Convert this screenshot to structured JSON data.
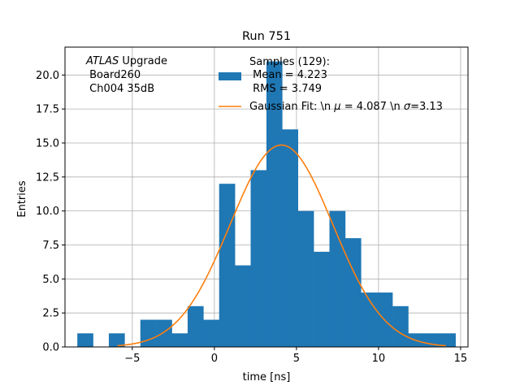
{
  "chart_data": {
    "type": "bar",
    "title": "Run 751",
    "xlabel": "time [ns]",
    "ylabel": "Entries",
    "xlim": [
      -9.1,
      15.45
    ],
    "ylim": [
      0,
      22.05
    ],
    "grid": true,
    "bin_width": 0.96,
    "histogram": {
      "bin_start": [
        -8.35,
        -7.39,
        -6.43,
        -5.47,
        -4.51,
        -3.55,
        -2.59,
        -1.63,
        -0.67,
        0.29,
        1.25,
        2.21,
        3.17,
        4.13,
        5.09,
        6.05,
        7.01,
        7.97,
        8.93,
        9.89,
        10.85,
        11.81,
        12.77,
        13.73
      ],
      "counts": [
        1,
        0,
        1,
        0,
        2,
        2,
        1,
        3,
        2,
        12,
        6,
        13,
        21,
        16,
        10,
        7,
        10,
        8,
        4,
        4,
        3,
        1,
        1,
        1
      ],
      "color": "#1f77b4"
    },
    "gaussian_fit": {
      "mu": 4.087,
      "sigma": 3.13,
      "amplitude": 14.85,
      "x_range": [
        -5.9,
        14.1
      ],
      "color": "#ff7f0e"
    },
    "x_ticks": [
      {
        "value": -5,
        "label": "−5"
      },
      {
        "value": 0,
        "label": "0"
      },
      {
        "value": 5,
        "label": "5"
      },
      {
        "value": 10,
        "label": "10"
      },
      {
        "value": 15,
        "label": "15"
      }
    ],
    "y_ticks": [
      {
        "value": 0,
        "label": "0.0"
      },
      {
        "value": 2.5,
        "label": "2.5"
      },
      {
        "value": 5,
        "label": "5.0"
      },
      {
        "value": 7.5,
        "label": "7.5"
      },
      {
        "value": 10,
        "label": "10.0"
      },
      {
        "value": 12.5,
        "label": "12.5"
      },
      {
        "value": 15,
        "label": "15.0"
      },
      {
        "value": 17.5,
        "label": "17.5"
      },
      {
        "value": 20,
        "label": "20.0"
      }
    ],
    "annotation": {
      "line1_italic": "ATLAS",
      "line1_rest": " Upgrade",
      "line2": " Board260",
      "line3": " Ch004 35dB"
    },
    "legend": {
      "placement": "upper-center",
      "hist_line1": "Samples (129):",
      "hist_line2": " Mean = 4.223",
      "hist_line3": " RMS = 3.749",
      "fit_prefix": "Gaussian Fit: \\n ",
      "fit_mu_symbol": "μ",
      "fit_mid": " = 4.087 \\n ",
      "fit_sigma_symbol": "σ",
      "fit_suffix": "=3.13"
    }
  }
}
